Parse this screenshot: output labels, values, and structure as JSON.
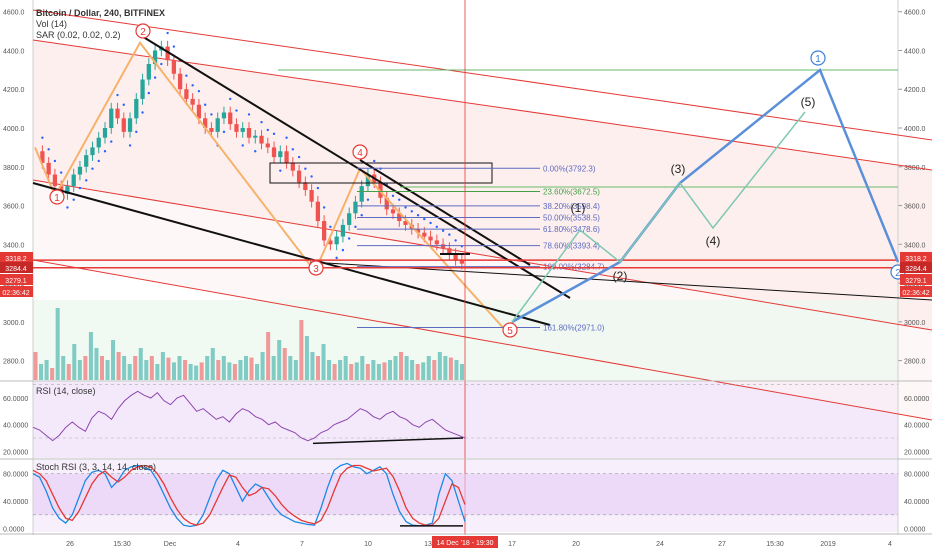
{
  "header": {
    "title": "Bitcoin / Dollar, 240, BITFINEX",
    "vol_label": "Vol (14)",
    "sar_label": "SAR (0.02, 0.02, 0.2)"
  },
  "chart_data": {
    "type": "line",
    "title": "Bitcoin / Dollar, 240, BITFINEX",
    "price_axis": {
      "range": [
        2700,
        4650
      ],
      "ticks": [
        2800,
        3000,
        3200,
        3400,
        3600,
        3800,
        4000,
        4200,
        4400,
        4600
      ],
      "tick_labels": [
        "2800.0",
        "3000.0",
        "3200.0",
        "3400.0",
        "3600.0",
        "3800.0",
        "4000.0",
        "4200.0",
        "4400.0",
        "4600.0"
      ]
    },
    "price_badges": [
      {
        "label": "3318.2",
        "value": 3318.2,
        "color": "#e53935"
      },
      {
        "label": "3284.4",
        "value": 3284.4,
        "color": "#c62828"
      },
      {
        "label": "3279.1",
        "value": 3279.1,
        "color": "#e53935"
      },
      {
        "label": "02:36:42",
        "value": 3250,
        "color": "#e53935"
      }
    ],
    "time_axis": {
      "labels": [
        "26",
        "15:30",
        "Dec",
        "4",
        "7",
        "10",
        "13",
        "17",
        "20",
        "24",
        "27",
        "15:30",
        "2019",
        "4"
      ],
      "cursor_label": "14 Dec '18 - 19:30"
    },
    "fibonacci": [
      {
        "label": "0.00%(3792.3)",
        "value": 3792.3
      },
      {
        "label": "23.60%(3672.5)",
        "value": 3672.5
      },
      {
        "label": "38.20%(3598.4)",
        "value": 3598.4
      },
      {
        "label": "50.00%(3538.5)",
        "value": 3538.5
      },
      {
        "label": "61.80%(3478.6)",
        "value": 3478.6
      },
      {
        "label": "78.60%(3393.4)",
        "value": 3393.4
      },
      {
        "label": "100.00%(3284.7)",
        "value": 3284.7
      },
      {
        "label": "161.80%(2971.0)",
        "value": 2971.0
      }
    ],
    "wave_labels_circled": [
      {
        "label": "1",
        "x": 0.02,
        "price": 3640,
        "color": "#e53935"
      },
      {
        "label": "2",
        "x": 0.2,
        "price": 4500,
        "color": "#e53935"
      },
      {
        "label": "3",
        "x": 0.53,
        "price": 3225,
        "color": "#e53935"
      },
      {
        "label": "4",
        "x": 0.63,
        "price": 3815,
        "color": "#e53935"
      },
      {
        "label": "5",
        "x": 0.9,
        "price": 2890,
        "color": "#e53935"
      }
    ],
    "projection_labels_circled": [
      {
        "label": "1",
        "color": "#3f7fd6"
      },
      {
        "label": "2",
        "color": "#3f7fd6"
      }
    ],
    "projection_labels": [
      "(1)",
      "(2)",
      "(3)",
      "(4)",
      "(5)"
    ],
    "rsi": {
      "label": "RSI (14, close)",
      "range": [
        15,
        72
      ],
      "ticks": [
        20,
        40,
        60
      ],
      "tick_labels": [
        "20.0000",
        "40.0000",
        "60.0000"
      ],
      "values": [
        38,
        36,
        32,
        28,
        32,
        38,
        42,
        38,
        35,
        45,
        50,
        48,
        44,
        52,
        58,
        62,
        65,
        62,
        60,
        64,
        58,
        55,
        60,
        62,
        56,
        50,
        52,
        48,
        44,
        46,
        42,
        48,
        52,
        50,
        46,
        44,
        40,
        42,
        38,
        36,
        34,
        30,
        28,
        30,
        34,
        36,
        40,
        42,
        44,
        48,
        52,
        50,
        46,
        44,
        48,
        50,
        46,
        44,
        40,
        38,
        42,
        44,
        40,
        36,
        34,
        32,
        30
      ]
    },
    "stoch_rsi": {
      "label": "Stoch RSI (3, 3, 14, 14, close)",
      "range": [
        -5,
        100
      ],
      "ticks": [
        0,
        40,
        80
      ],
      "tick_labels": [
        "0.0000",
        "40.0000",
        "80.0000"
      ],
      "k_values": [
        80,
        75,
        55,
        30,
        15,
        8,
        20,
        45,
        70,
        82,
        85,
        80,
        60,
        70,
        85,
        90,
        92,
        88,
        85,
        70,
        50,
        30,
        15,
        5,
        3,
        5,
        20,
        45,
        70,
        85,
        80,
        60,
        40,
        55,
        65,
        60,
        45,
        30,
        20,
        15,
        10,
        8,
        6,
        5,
        30,
        60,
        85,
        92,
        95,
        90,
        88,
        80,
        85,
        90,
        80,
        50,
        25,
        10,
        5,
        4,
        5,
        8,
        50,
        80,
        70,
        40,
        10
      ],
      "d_values": [
        85,
        80,
        70,
        50,
        30,
        15,
        12,
        25,
        45,
        65,
        78,
        84,
        75,
        68,
        75,
        85,
        90,
        92,
        90,
        80,
        65,
        45,
        28,
        15,
        8,
        5,
        8,
        20,
        40,
        60,
        78,
        75,
        60,
        48,
        52,
        60,
        58,
        48,
        35,
        25,
        18,
        12,
        9,
        7,
        12,
        30,
        55,
        78,
        88,
        92,
        92,
        88,
        84,
        86,
        88,
        76,
        55,
        30,
        15,
        8,
        5,
        5,
        15,
        40,
        65,
        60,
        35
      ]
    },
    "volume": {
      "range": [
        0,
        1
      ],
      "values": [
        0.35,
        0.2,
        0.25,
        0.15,
        0.9,
        0.3,
        0.2,
        0.45,
        0.25,
        0.3,
        0.6,
        0.4,
        0.3,
        0.25,
        0.5,
        0.35,
        0.3,
        0.2,
        0.3,
        0.4,
        0.25,
        0.3,
        0.2,
        0.35,
        0.28,
        0.22,
        0.3,
        0.25,
        0.2,
        0.18,
        0.22,
        0.3,
        0.4,
        0.25,
        0.3,
        0.22,
        0.2,
        0.25,
        0.3,
        0.28,
        0.2,
        0.35,
        0.6,
        0.3,
        0.5,
        0.4,
        0.3,
        0.25,
        0.75,
        0.55,
        0.35,
        0.3,
        0.45,
        0.25,
        0.2,
        0.25,
        0.3,
        0.2,
        0.22,
        0.3,
        0.2,
        0.25,
        0.2,
        0.22,
        0.25,
        0.3,
        0.35,
        0.3,
        0.25,
        0.2,
        0.22,
        0.3,
        0.25,
        0.35,
        0.3,
        0.28,
        0.25,
        0.2
      ]
    },
    "price_series": [
      3880,
      3820,
      3760,
      3700,
      3660,
      3700,
      3760,
      3800,
      3860,
      3900,
      3950,
      4000,
      4100,
      4050,
      3980,
      4050,
      4150,
      4250,
      4330,
      4400,
      4420,
      4350,
      4280,
      4200,
      4150,
      4120,
      4050,
      4000,
      3980,
      4050,
      4080,
      4020,
      3980,
      4000,
      3950,
      3960,
      3920,
      3900,
      3850,
      3880,
      3820,
      3780,
      3720,
      3680,
      3620,
      3520,
      3420,
      3400,
      3440,
      3500,
      3560,
      3620,
      3700,
      3760,
      3720,
      3640,
      3580,
      3560,
      3520,
      3500,
      3480,
      3460,
      3440,
      3420,
      3400,
      3380,
      3350,
      3320,
      3300
    ]
  }
}
